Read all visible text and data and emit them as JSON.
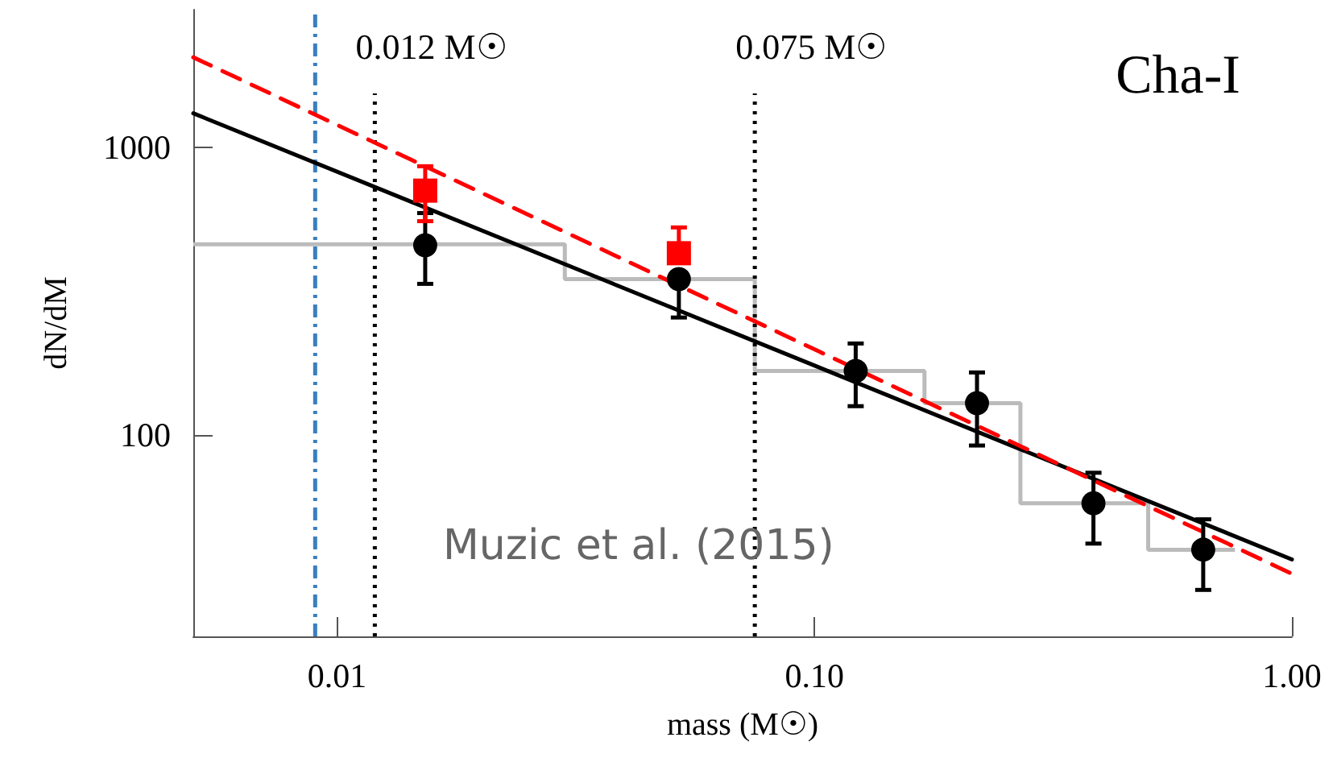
{
  "chart_data": {
    "type": "scatter",
    "xlabel": "mass (M☉)",
    "ylabel": "dN/dM",
    "log": "xy",
    "xlim": [
      0.005,
      1
    ],
    "ylim": [
      20,
      3000
    ],
    "xticks": [
      {
        "value": 0.01,
        "label": "0.01"
      },
      {
        "value": 0.1,
        "label": "0.10"
      },
      {
        "value": 1,
        "label": "1.00"
      }
    ],
    "yticks": [
      100,
      1000
    ],
    "grid": false,
    "series": [
      {
        "type": "histogram",
        "color": "#bbbbbb",
        "bins": [
          0.005,
          0.03,
          0.075,
          0.17,
          0.27,
          0.5,
          0.76
        ],
        "values": [
          460,
          348,
          167,
          129,
          58,
          40
        ]
      },
      {
        "type": "line",
        "color": "#000000",
        "line_style": "solid",
        "marker": "none",
        "x": [
          0.005,
          1
        ],
        "values": [
          1310,
          37
        ]
      },
      {
        "type": "line",
        "color": "#ff0000",
        "line_style": "dashed",
        "marker": "none",
        "x": [
          0.005,
          1
        ],
        "values": [
          2050,
          33
        ]
      },
      {
        "color": "#000000",
        "marker": "circle",
        "x": [
          0.0153,
          0.052,
          0.122,
          0.219,
          0.384,
          0.652
        ],
        "values": [
          456,
          348,
          167,
          129,
          58,
          40
        ],
        "errors": [
          [
            335,
            590
          ],
          [
            256,
            348
          ],
          [
            126,
            208
          ],
          [
            92,
            165
          ],
          [
            42,
            74
          ],
          [
            29,
            51
          ]
        ]
      },
      {
        "color": "#ff0000",
        "marker": "square",
        "x": [
          0.0153,
          0.052
        ],
        "values": [
          706,
          428
        ],
        "errors": [
          [
            553,
            858
          ],
          [
            428,
            526
          ]
        ]
      }
    ],
    "ref_lines": [
      {
        "axis": "x",
        "value": 0.009,
        "label": null,
        "color": "#3a7fc0",
        "line_style": "dashdot"
      },
      {
        "axis": "x",
        "value": 0.012,
        "label": "0.012 M☉",
        "color": "#000000",
        "line_style": "dotted"
      },
      {
        "axis": "x",
        "value": 0.075,
        "label": "0.075 M☉",
        "color": "#000000",
        "line_style": "dotted"
      }
    ],
    "annotations": [
      "Cha-I",
      "Muzic et al. (2015)"
    ]
  }
}
